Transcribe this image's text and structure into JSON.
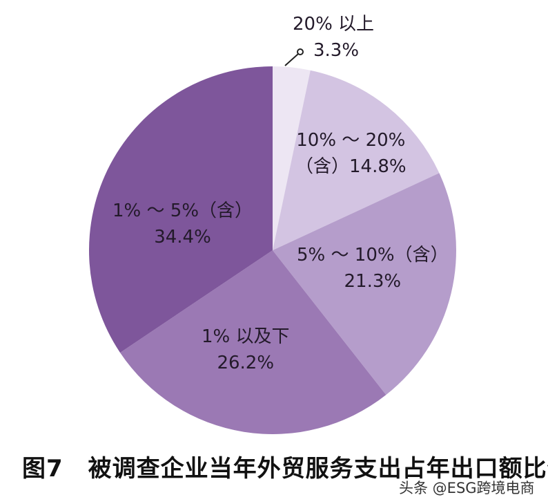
{
  "chart_data": {
    "type": "pie",
    "title": "图7 被调查企业当年外贸服务支出占年出口额比例",
    "start_angle_deg": 0,
    "direction": "clockwise",
    "slices": [
      {
        "label": "20% 以上",
        "value": 3.3,
        "display": "3.3%",
        "color": "#ede6f3"
      },
      {
        "label": "10% ~ 20%（含）",
        "value": 14.8,
        "display": "14.8%",
        "color": "#d3c4e2"
      },
      {
        "label": "5% ~ 10%（含）",
        "value": 21.3,
        "display": "21.3%",
        "color": "#b59dcb"
      },
      {
        "label": "1% 以及下",
        "value": 26.2,
        "display": "26.2%",
        "color": "#9b79b4"
      },
      {
        "label": "1% ~ 5%（含）",
        "value": 34.4,
        "display": "34.4%",
        "color": "#7e569b"
      }
    ]
  },
  "labels": {
    "s0_line1": "20% 以上",
    "s0_line2": "3.3%",
    "s1_line1": "10% ～ 20%",
    "s1_line2": "（含）14.8%",
    "s2_line1": "5% ～ 10%（含）",
    "s2_line2": "21.3%",
    "s3_line1": "1% 以及下",
    "s3_line2": "26.2%",
    "s4_line1": "1% ～ 5%（含）",
    "s4_line2": "34.4%"
  },
  "caption": {
    "figure_number": "图7",
    "text": "被调查企业当年外贸服务支出占年出口额比例"
  },
  "watermark": "头条 @ESG跨境电商"
}
